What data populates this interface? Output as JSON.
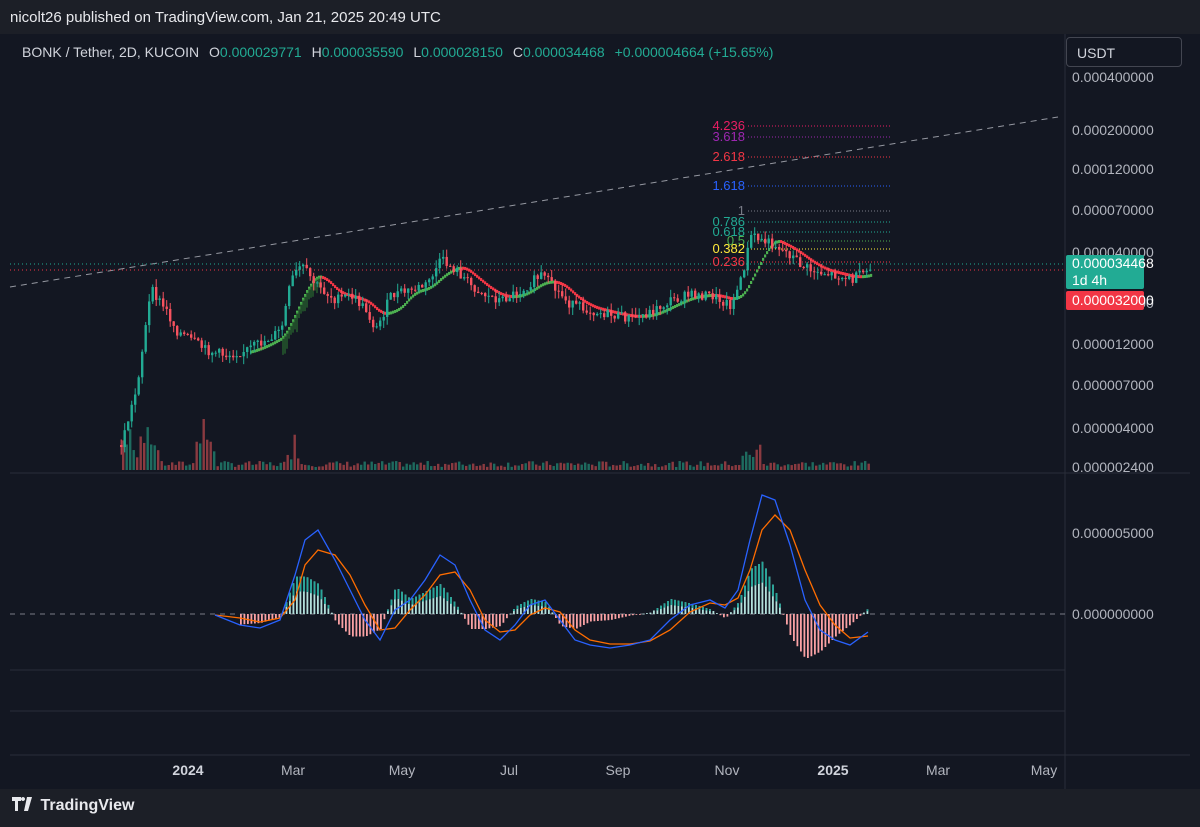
{
  "published_line": "nicolt26 published on TradingView.com, Jan 21, 2025 20:49 UTC",
  "header": {
    "symbol": "BONK / Tether, 2D, KUCOIN",
    "open_label": "O",
    "open": "0.000029771",
    "high_label": "H",
    "high": "0.000035590",
    "low_label": "L",
    "low": "0.000028150",
    "close_label": "C",
    "close": "0.000034468",
    "change": "+0.000004664 (+15.65%)"
  },
  "currency_button": "USDT",
  "price_axis_labels": [
    "0.000400000",
    "0.000200000",
    "0.000120000",
    "0.000070000",
    "0.000040000",
    "0.000020000",
    "0.000012000",
    "0.000007000",
    "0.000004000",
    "0.000002400"
  ],
  "current_price_tag": {
    "price": "0.000034468",
    "countdown": "1d 4h"
  },
  "level_tag": "0.000032000",
  "macd_axis_labels": [
    "0.000005000",
    "0.000000000"
  ],
  "time_axis_labels": [
    "2024",
    "Mar",
    "May",
    "Jul",
    "Sep",
    "Nov",
    "2025",
    "Mar",
    "May"
  ],
  "fib_levels": [
    {
      "label": "4.236",
      "color": "#e91e63"
    },
    {
      "label": "3.618",
      "color": "#9c27b0"
    },
    {
      "label": "2.618",
      "color": "#f23645"
    },
    {
      "label": "1.618",
      "color": "#2962ff"
    },
    {
      "label": "1",
      "color": "#787b86"
    },
    {
      "label": "0.786",
      "color": "#22ab94"
    },
    {
      "label": "0.618",
      "color": "#22ab94"
    },
    {
      "label": "0.5",
      "color": "#4caf50"
    },
    {
      "label": "0.382",
      "color": "#ffeb3b"
    },
    {
      "label": "0.236",
      "color": "#f23645"
    }
  ],
  "colors": {
    "up": "#22ab94",
    "down": "#f7525f",
    "macd": "#2962ff",
    "signal": "#ff6d00",
    "background": "#131722"
  },
  "chart_data": {
    "type": "candlestick",
    "y_scale": "log",
    "x_range": [
      "Oct 2023",
      "May 2025"
    ],
    "current_price": 3.4468e-05,
    "ma_ribbon": "green rising, red falling",
    "approx_closes": [
      {
        "date": "Nov 2023",
        "close": 3.5e-06
      },
      {
        "date": "Dec 2023",
        "close": 2.5e-05
      },
      {
        "date": "Jan 2024",
        "close": 1.2e-05
      },
      {
        "date": "Feb 2024",
        "close": 1.1e-05
      },
      {
        "date": "Mar 2024",
        "close": 3e-05
      },
      {
        "date": "Apr 2024",
        "close": 2e-05
      },
      {
        "date": "May 2024",
        "close": 2.8e-05
      },
      {
        "date": "Jun 2024",
        "close": 2.5e-05
      },
      {
        "date": "Jul 2024",
        "close": 2.4e-05
      },
      {
        "date": "Aug 2024",
        "close": 1.9e-05
      },
      {
        "date": "Sep 2024",
        "close": 1.7e-05
      },
      {
        "date": "Oct 2024",
        "close": 2.2e-05
      },
      {
        "date": "Nov 2024",
        "close": 5e-05
      },
      {
        "date": "Dec 2024",
        "close": 3.2e-05
      },
      {
        "date": "Jan 2025",
        "close": 3.4468e-05
      }
    ],
    "macd": {
      "approx_macd": [
        8e-07,
        5e-06,
        2e-07,
        3.2e-06,
        -1.4e-06,
        1.1e-06,
        -2e-06,
        6e-07,
        6.9e-06,
        -1.8e-06
      ],
      "approx_signal": [
        5e-07,
        3.7e-06,
        1e-07,
        3e-06,
        -1.1e-06,
        5e-07,
        -1.7e-06,
        3e-07,
        5.9e-06,
        -1.2e-06
      ]
    }
  }
}
